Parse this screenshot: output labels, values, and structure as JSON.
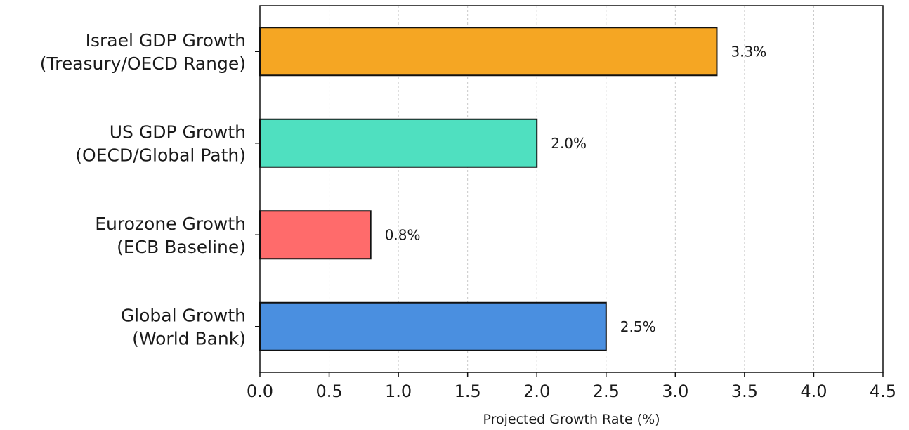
{
  "chart_data": {
    "type": "bar",
    "orientation": "horizontal",
    "categories": [
      [
        "Israel GDP Growth",
        "(Treasury/OECD Range)"
      ],
      [
        "US GDP Growth",
        "(OECD/Global Path)"
      ],
      [
        "Eurozone Growth",
        "(ECB Baseline)"
      ],
      [
        "Global Growth",
        "(World Bank)"
      ]
    ],
    "values": [
      3.3,
      2.0,
      0.8,
      2.5
    ],
    "data_labels": [
      "3.3%",
      "2.0%",
      "0.8%",
      "2.5%"
    ],
    "colors": [
      "#f5a623",
      "#4fe0c0",
      "#ff6b6b",
      "#4a8fe0"
    ],
    "xlabel": "Projected Growth Rate (%)",
    "ylabel": "",
    "title": "",
    "xlim": [
      0,
      4.5
    ],
    "xticks": [
      0.0,
      0.5,
      1.0,
      1.5,
      2.0,
      2.5,
      3.0,
      3.5,
      4.0,
      4.5
    ],
    "xtick_labels": [
      "0.0",
      "0.5",
      "1.0",
      "1.5",
      "2.0",
      "2.5",
      "3.0",
      "3.5",
      "4.0",
      "4.5"
    ],
    "grid": "x-dashed",
    "legend": "none"
  }
}
